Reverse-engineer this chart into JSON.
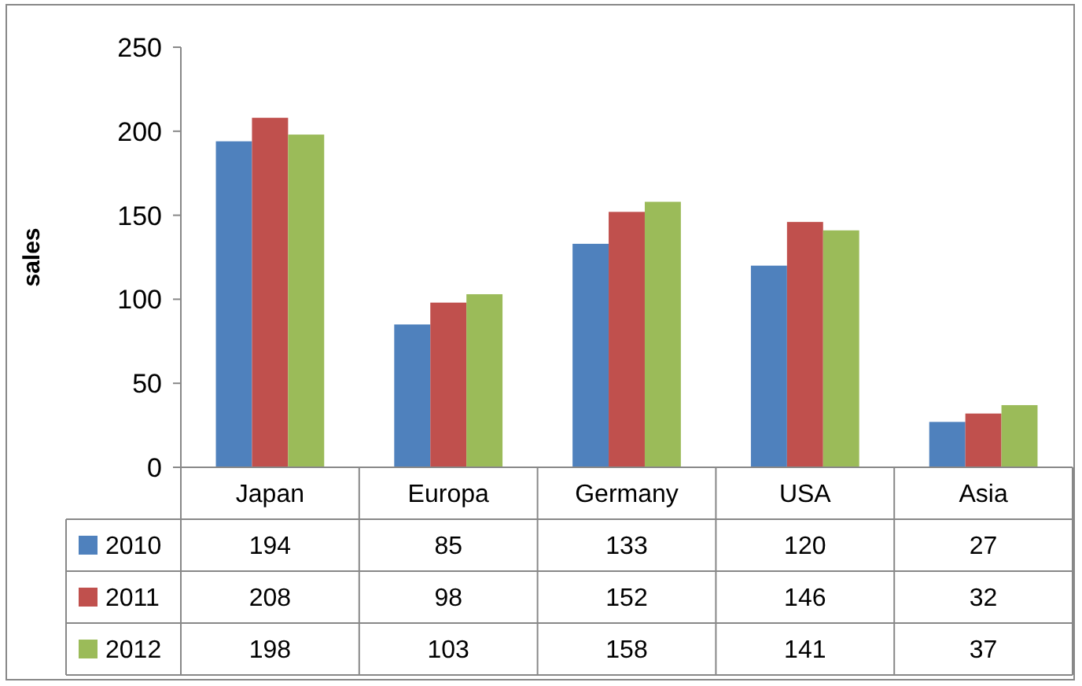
{
  "chart_data": {
    "type": "bar",
    "ylabel": "sales",
    "categories": [
      "Japan",
      "Europa",
      "Germany",
      "USA",
      "Asia"
    ],
    "series": [
      {
        "name": "2010",
        "color": "#4f81bd",
        "values": [
          194,
          85,
          133,
          120,
          27
        ]
      },
      {
        "name": "2011",
        "color": "#c0504d",
        "values": [
          208,
          98,
          152,
          146,
          32
        ]
      },
      {
        "name": "2012",
        "color": "#9bbb59",
        "values": [
          198,
          103,
          158,
          141,
          37
        ]
      }
    ],
    "ylim": [
      0,
      250
    ],
    "yticks": [
      0,
      50,
      100,
      150,
      200,
      250
    ],
    "grid": false,
    "legend": "bottom",
    "data_labels": true
  }
}
